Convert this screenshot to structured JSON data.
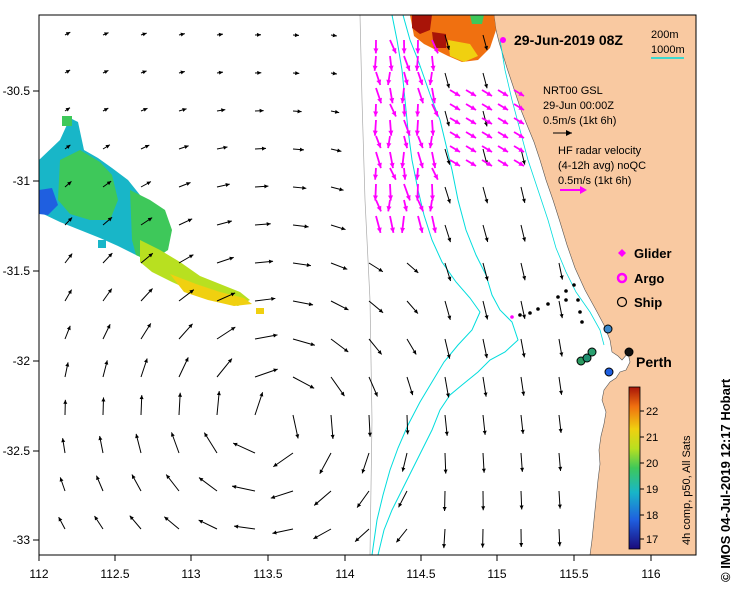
{
  "title": "29-Jun-2019 08Z",
  "credit": "© IMOS 04-Jul-2019 12:17 Hobart",
  "city": "Perth",
  "scale_depths": [
    "200m",
    "1000m"
  ],
  "model_legend": {
    "line1": "NRT00 GSL",
    "line2": "29-Jun 00:00Z",
    "line3": "0.5m/s (1kt 6h)"
  },
  "radar_legend": {
    "line1": "HF radar velocity",
    "line2": "(4-12h avg) noQC",
    "line3": "0.5m/s (1kt 6h)"
  },
  "symbols": [
    {
      "label": "Glider",
      "color": "#ff00ff"
    },
    {
      "label": "Argo",
      "color": "#ff00ff"
    },
    {
      "label": "Ship",
      "color": "#000000"
    }
  ],
  "colorbar": {
    "label": "4h comp, p50, All Sats",
    "ticks": [
      "22",
      "21",
      "20",
      "19",
      "18",
      "17"
    ]
  },
  "chart_data": {
    "type": "map",
    "x_ticks": [
      "112",
      "112.5",
      "113",
      "113.5",
      "114",
      "114.5",
      "115",
      "115.5",
      "116"
    ],
    "y_ticks": [
      "-30.5",
      "-31",
      "-31.5",
      "-32",
      "-32.5",
      "-33"
    ],
    "xlim": [
      112,
      116.3
    ],
    "ylim": [
      -33.1,
      -30.1
    ],
    "colors": {
      "land": "#f9c9a1",
      "isobath": "#00dddd",
      "radar_vector": "#ff00ff",
      "model_vector": "#000000"
    },
    "colorbar_range": [
      16.7,
      22.7
    ]
  }
}
